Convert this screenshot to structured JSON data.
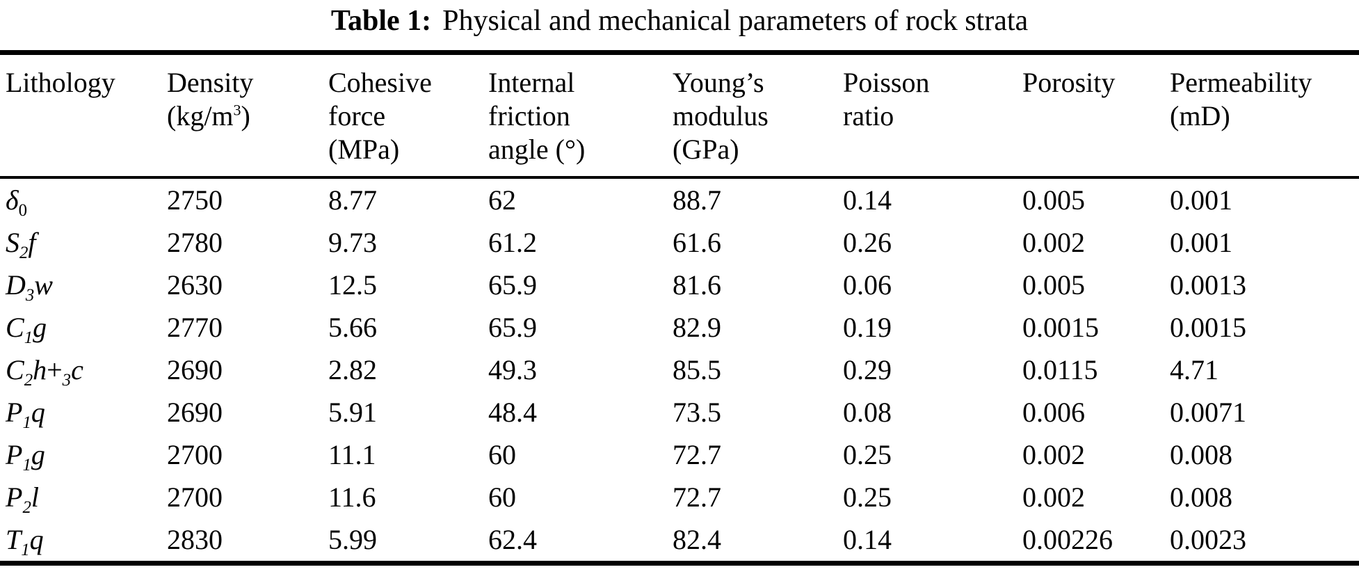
{
  "caption": {
    "label": "Table 1:",
    "text": "Physical and mechanical parameters of rock strata"
  },
  "table": {
    "columns": [
      {
        "id": "lithology",
        "lines": [
          [
            {
              "t": "Lithology"
            }
          ]
        ]
      },
      {
        "id": "density",
        "lines": [
          [
            {
              "t": "Density"
            }
          ],
          [
            {
              "t": "(kg/m"
            },
            {
              "t": "3",
              "sup": true
            },
            {
              "t": ")"
            }
          ]
        ]
      },
      {
        "id": "cohesive-force",
        "lines": [
          [
            {
              "t": "Cohesive"
            }
          ],
          [
            {
              "t": "force"
            }
          ],
          [
            {
              "t": "(MPa)"
            }
          ]
        ]
      },
      {
        "id": "internal-friction-angle",
        "lines": [
          [
            {
              "t": "Internal"
            }
          ],
          [
            {
              "t": "friction"
            }
          ],
          [
            {
              "t": "angle (°)"
            }
          ]
        ]
      },
      {
        "id": "youngs-modulus",
        "lines": [
          [
            {
              "t": "Young’s"
            }
          ],
          [
            {
              "t": "modulus"
            }
          ],
          [
            {
              "t": "(GPa)"
            }
          ]
        ]
      },
      {
        "id": "poisson-ratio",
        "lines": [
          [
            {
              "t": "Poisson"
            }
          ],
          [
            {
              "t": "ratio"
            }
          ]
        ]
      },
      {
        "id": "porosity",
        "lines": [
          [
            {
              "t": "Porosity"
            }
          ]
        ]
      },
      {
        "id": "permeability",
        "lines": [
          [
            {
              "t": "Permeability"
            }
          ],
          [
            {
              "t": "(mD)"
            }
          ]
        ]
      }
    ],
    "rows": [
      {
        "lithology": [
          {
            "t": "δ",
            "i": true
          },
          {
            "t": "0",
            "sub": true
          }
        ],
        "values": [
          "2750",
          "8.77",
          "62",
          "88.7",
          "0.14",
          "0.005",
          "0.001"
        ]
      },
      {
        "lithology": [
          {
            "t": "S",
            "i": true
          },
          {
            "t": "2",
            "sub": true,
            "i": true
          },
          {
            "t": "f",
            "i": true
          }
        ],
        "values": [
          "2780",
          "9.73",
          "61.2",
          "61.6",
          "0.26",
          "0.002",
          "0.001"
        ]
      },
      {
        "lithology": [
          {
            "t": "D",
            "i": true
          },
          {
            "t": "3",
            "sub": true,
            "i": true
          },
          {
            "t": "w",
            "i": true
          }
        ],
        "values": [
          "2630",
          "12.5",
          "65.9",
          "81.6",
          "0.06",
          "0.005",
          "0.0013"
        ]
      },
      {
        "lithology": [
          {
            "t": "C",
            "i": true
          },
          {
            "t": "1",
            "sub": true,
            "i": true
          },
          {
            "t": "g",
            "i": true
          }
        ],
        "values": [
          "2770",
          "5.66",
          "65.9",
          "82.9",
          "0.19",
          "0.0015",
          "0.0015"
        ]
      },
      {
        "lithology": [
          {
            "t": "C",
            "i": true
          },
          {
            "t": "2",
            "sub": true,
            "i": true
          },
          {
            "t": "h",
            "i": true
          },
          {
            "t": "+"
          },
          {
            "t": "3",
            "sub": true,
            "i": true
          },
          {
            "t": "c",
            "i": true
          }
        ],
        "values": [
          "2690",
          "2.82",
          "49.3",
          "85.5",
          "0.29",
          "0.0115",
          "4.71"
        ]
      },
      {
        "lithology": [
          {
            "t": "P",
            "i": true
          },
          {
            "t": "1",
            "sub": true,
            "i": true
          },
          {
            "t": "q",
            "i": true
          }
        ],
        "values": [
          "2690",
          "5.91",
          "48.4",
          "73.5",
          "0.08",
          "0.006",
          "0.0071"
        ]
      },
      {
        "lithology": [
          {
            "t": "P",
            "i": true
          },
          {
            "t": "1",
            "sub": true,
            "i": true
          },
          {
            "t": "g",
            "i": true
          }
        ],
        "values": [
          "2700",
          "11.1",
          "60",
          "72.7",
          "0.25",
          "0.002",
          "0.008"
        ]
      },
      {
        "lithology": [
          {
            "t": "P",
            "i": true
          },
          {
            "t": "2",
            "sub": true,
            "i": true
          },
          {
            "t": "l",
            "i": true
          }
        ],
        "values": [
          "2700",
          "11.6",
          "60",
          "72.7",
          "0.25",
          "0.002",
          "0.008"
        ]
      },
      {
        "lithology": [
          {
            "t": "T",
            "i": true
          },
          {
            "t": "1",
            "sub": true,
            "i": true
          },
          {
            "t": "q",
            "i": true
          }
        ],
        "values": [
          "2830",
          "5.99",
          "62.4",
          "82.4",
          "0.14",
          "0.00226",
          "0.0023"
        ]
      }
    ]
  }
}
